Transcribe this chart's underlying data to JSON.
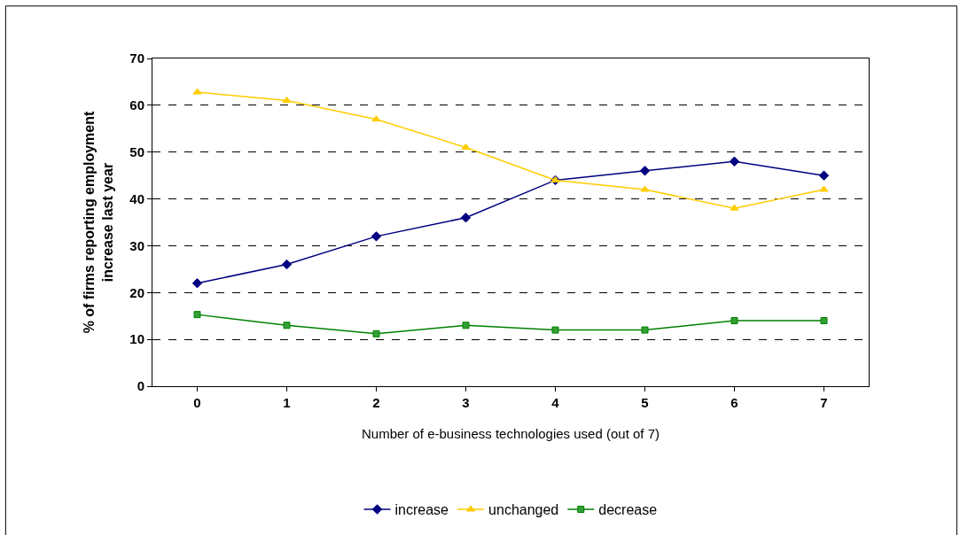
{
  "chart_data": {
    "type": "line",
    "xlabel": "Number of e-business technologies used (out of 7)",
    "ylabel": "% of firms reporting employment\nincrease last year",
    "categories": [
      "0",
      "1",
      "2",
      "3",
      "4",
      "5",
      "6",
      "7"
    ],
    "series": [
      {
        "name": "increase",
        "color": "#000080",
        "marker": "diamond",
        "values": [
          22,
          26,
          32,
          36,
          44,
          46,
          48,
          45
        ]
      },
      {
        "name": "unchanged",
        "color": "#ffcc00",
        "marker": "triangle",
        "values": [
          62.8,
          61,
          57,
          51,
          44,
          42,
          38,
          42
        ]
      },
      {
        "name": "decrease",
        "color": "#008000",
        "marker": "square",
        "values": [
          15.3,
          13,
          11.2,
          13,
          12,
          12,
          14,
          14
        ]
      }
    ],
    "ylim": [
      0,
      70
    ],
    "yticks": [
      0,
      10,
      20,
      30,
      40,
      50,
      60,
      70
    ],
    "grid": "y",
    "legend": "bottom",
    "line_style": "solid"
  }
}
